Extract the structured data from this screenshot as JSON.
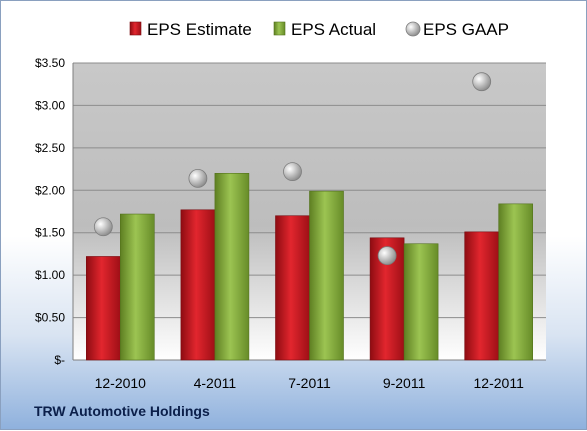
{
  "chart_data": {
    "type": "bar",
    "title": "",
    "categories": [
      "12-2010",
      "4-2011",
      "7-2011",
      "9-2011",
      "12-2011"
    ],
    "series": [
      {
        "name": "EPS Estimate",
        "kind": "bar",
        "color": "#c0141c",
        "values": [
          1.22,
          1.77,
          1.7,
          1.44,
          1.51
        ]
      },
      {
        "name": "EPS Actual",
        "kind": "bar",
        "color": "#7fa63a",
        "values": [
          1.72,
          2.2,
          1.99,
          1.37,
          1.84
        ]
      },
      {
        "name": "EPS GAAP",
        "kind": "marker",
        "color": "#a9a9a9",
        "values": [
          1.57,
          2.14,
          2.22,
          1.23,
          3.28
        ]
      }
    ],
    "ylim": [
      0,
      3.5
    ],
    "yticks": [
      0,
      0.5,
      1.0,
      1.5,
      2.0,
      2.5,
      3.0,
      3.5
    ],
    "ytick_labels": [
      "$-",
      "$0.50",
      "$1.00",
      "$1.50",
      "$2.00",
      "$2.50",
      "$3.00",
      "$3.50"
    ],
    "grid": true,
    "legend_position": "top"
  },
  "company": "TRW Automotive Holdings"
}
